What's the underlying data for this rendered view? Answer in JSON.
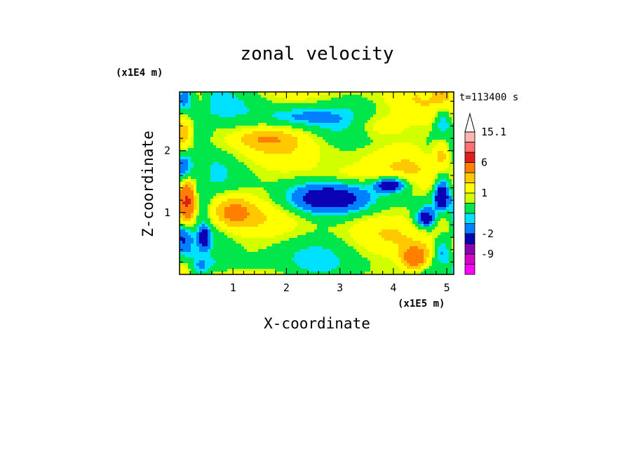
{
  "chart_data": {
    "type": "heatmap",
    "title": "zonal velocity",
    "xlabel": "X-coordinate",
    "ylabel": "Z-coordinate",
    "x_unit": "(x1E5 m)",
    "y_unit": "(x1E4 m)",
    "time_label": "t=113400 s",
    "xlim": [
      0,
      5.13
    ],
    "ylim": [
      0,
      2.95
    ],
    "x_ticks": [
      {
        "value": 1,
        "label": "1"
      },
      {
        "value": 2,
        "label": "2"
      },
      {
        "value": 3,
        "label": "3"
      },
      {
        "value": 4,
        "label": "4"
      },
      {
        "value": 5,
        "label": "5"
      }
    ],
    "y_ticks": [
      {
        "value": 1,
        "label": "1"
      },
      {
        "value": 2,
        "label": "2"
      }
    ],
    "colorbar": {
      "levels": [
        {
          "max": -12.0,
          "color": "#ff00ff"
        },
        {
          "max": -9.0,
          "color": "#d900c8"
        },
        {
          "max": -6.0,
          "color": "#8c00b4"
        },
        {
          "max": -2.0,
          "color": "#0a00b4"
        },
        {
          "max": -1.0,
          "color": "#0080ff"
        },
        {
          "max": -0.5,
          "color": "#00e1ff"
        },
        {
          "max": 0.5,
          "color": "#00e64b"
        },
        {
          "max": 1.0,
          "color": "#d2ff00"
        },
        {
          "max": 2.0,
          "color": "#ffff00"
        },
        {
          "max": 3.0,
          "color": "#ffc800"
        },
        {
          "max": 6.0,
          "color": "#ff8000"
        },
        {
          "max": 9.0,
          "color": "#e01e1e"
        },
        {
          "max": 12.0,
          "color": "#ff7070"
        },
        {
          "max": 15.1,
          "color": "#ffb4b4"
        }
      ],
      "labels": [
        {
          "value": 15.1,
          "label": "15.1"
        },
        {
          "value": 6,
          "label": "6"
        },
        {
          "value": 1,
          "label": "1"
        },
        {
          "value": -2,
          "label": "-2"
        },
        {
          "value": -9,
          "label": "-9"
        }
      ],
      "overflow_arrow": "top"
    }
  }
}
